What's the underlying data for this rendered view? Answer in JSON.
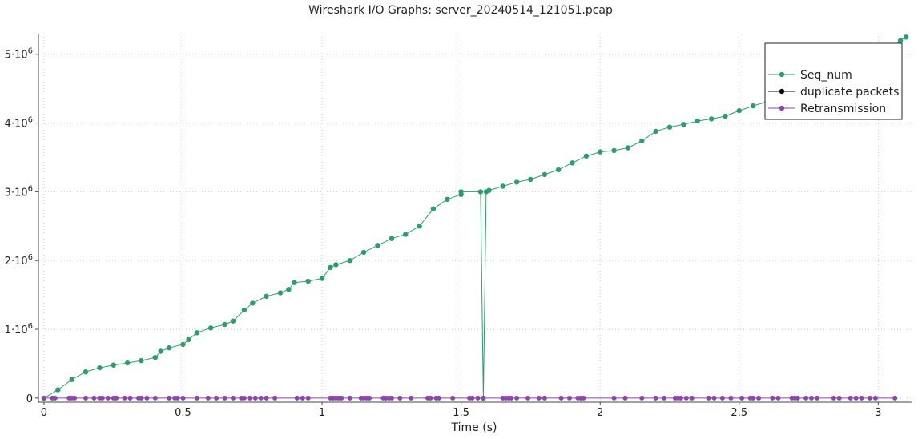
{
  "chart_data": {
    "type": "line",
    "title": "Wireshark I/O Graphs: server_20240514_121051.pcap",
    "xlabel": "Time (s)",
    "ylabel": "",
    "xlim": [
      -0.02,
      3.12
    ],
    "ylim": [
      -60000,
      5300000
    ],
    "x_ticks": [
      {
        "value": 0,
        "label": "0"
      },
      {
        "value": 0.5,
        "label": "0.5"
      },
      {
        "value": 1,
        "label": "1"
      },
      {
        "value": 1.5,
        "label": "1.5"
      },
      {
        "value": 2,
        "label": "2"
      },
      {
        "value": 2.5,
        "label": "2.5"
      },
      {
        "value": 3,
        "label": "3"
      }
    ],
    "y_ticks": [
      {
        "value": 0,
        "mantissa": "0",
        "exp": ""
      },
      {
        "value": 1000000,
        "mantissa": "1·10",
        "exp": "6"
      },
      {
        "value": 2000000,
        "mantissa": "2·10",
        "exp": "6"
      },
      {
        "value": 3000000,
        "mantissa": "3·10",
        "exp": "6"
      },
      {
        "value": 4000000,
        "mantissa": "4·10",
        "exp": "6"
      },
      {
        "value": 5000000,
        "mantissa": "5·10",
        "exp": "6"
      }
    ],
    "grid": true,
    "legend_position": "top-right",
    "series": [
      {
        "name": "Seq_num",
        "color": "#2e9e68",
        "x": [
          0.0,
          0.05,
          0.1,
          0.15,
          0.2,
          0.25,
          0.3,
          0.35,
          0.4,
          0.42,
          0.45,
          0.5,
          0.52,
          0.55,
          0.6,
          0.65,
          0.68,
          0.72,
          0.75,
          0.8,
          0.85,
          0.88,
          0.9,
          0.95,
          1.0,
          1.03,
          1.05,
          1.1,
          1.15,
          1.2,
          1.25,
          1.3,
          1.35,
          1.4,
          1.45,
          1.5,
          1.5,
          1.57,
          1.58,
          1.59,
          1.6,
          1.65,
          1.7,
          1.75,
          1.8,
          1.85,
          1.9,
          1.95,
          2.0,
          2.05,
          2.1,
          2.15,
          2.2,
          2.25,
          2.3,
          2.35,
          2.4,
          2.45,
          2.5,
          2.55,
          2.6,
          2.65,
          2.7,
          2.75,
          2.8,
          2.85,
          2.9,
          2.95,
          3.0,
          3.05,
          3.08,
          3.1
        ],
        "y": [
          0,
          120000,
          270000,
          380000,
          440000,
          480000,
          510000,
          545000,
          590000,
          680000,
          730000,
          780000,
          850000,
          950000,
          1020000,
          1070000,
          1120000,
          1280000,
          1380000,
          1480000,
          1530000,
          1580000,
          1680000,
          1700000,
          1740000,
          1900000,
          1940000,
          2000000,
          2120000,
          2220000,
          2320000,
          2380000,
          2500000,
          2750000,
          2890000,
          2960000,
          3000000,
          3000000,
          0,
          3000000,
          3020000,
          3080000,
          3140000,
          3180000,
          3250000,
          3320000,
          3420000,
          3520000,
          3580000,
          3600000,
          3640000,
          3740000,
          3880000,
          3940000,
          3980000,
          4030000,
          4060000,
          4100000,
          4180000,
          4250000,
          4310000,
          4380000,
          4470000,
          4560000,
          4640000,
          4720000,
          4800000,
          4880000,
          4980000,
          5100000,
          5200000,
          5250000
        ]
      },
      {
        "name": "duplicate packets",
        "color": "#000000",
        "x": [],
        "y": []
      },
      {
        "name": "Retransmission",
        "color": "#8e44ad",
        "x": [
          0.0,
          0.03,
          0.04,
          0.09,
          0.1,
          0.11,
          0.15,
          0.18,
          0.2,
          0.21,
          0.23,
          0.25,
          0.26,
          0.29,
          0.31,
          0.34,
          0.35,
          0.37,
          0.4,
          0.45,
          0.47,
          0.48,
          0.5,
          0.55,
          0.59,
          0.62,
          0.65,
          0.68,
          0.71,
          0.72,
          0.74,
          0.76,
          0.78,
          0.8,
          0.83,
          0.91,
          0.93,
          0.95,
          1.03,
          1.04,
          1.05,
          1.06,
          1.07,
          1.1,
          1.14,
          1.15,
          1.16,
          1.17,
          1.22,
          1.23,
          1.24,
          1.25,
          1.28,
          1.32,
          1.38,
          1.39,
          1.41,
          1.42,
          1.47,
          1.53,
          1.54,
          1.56,
          1.58,
          1.65,
          1.66,
          1.67,
          1.68,
          1.7,
          1.74,
          1.78,
          1.8,
          1.86,
          1.89,
          1.92,
          1.93,
          1.94,
          2.05,
          2.09,
          2.15,
          2.2,
          2.23,
          2.27,
          2.28,
          2.29,
          2.31,
          2.33,
          2.39,
          2.41,
          2.44,
          2.47,
          2.51,
          2.54,
          2.55,
          2.57,
          2.62,
          2.64,
          2.69,
          2.7,
          2.71,
          2.74,
          2.76,
          2.78,
          2.84,
          2.86,
          2.9,
          2.92,
          2.94,
          2.97,
          2.99,
          3.06
        ],
        "y": [
          0,
          0,
          0,
          0,
          0,
          0,
          0,
          0,
          0,
          0,
          0,
          0,
          0,
          0,
          0,
          0,
          0,
          0,
          0,
          0,
          0,
          0,
          0,
          0,
          0,
          0,
          0,
          0,
          0,
          0,
          0,
          0,
          0,
          0,
          0,
          0,
          0,
          0,
          0,
          0,
          0,
          0,
          0,
          0,
          0,
          0,
          0,
          0,
          0,
          0,
          0,
          0,
          0,
          0,
          0,
          0,
          0,
          0,
          0,
          0,
          0,
          0,
          0,
          0,
          0,
          0,
          0,
          0,
          0,
          0,
          0,
          0,
          0,
          0,
          0,
          0,
          0,
          0,
          0,
          0,
          0,
          0,
          0,
          0,
          0,
          0,
          0,
          0,
          0,
          0,
          0,
          0,
          0,
          0,
          0,
          0,
          0,
          0,
          0,
          0,
          0,
          0,
          0,
          0,
          0,
          0,
          0,
          0,
          0,
          0
        ]
      }
    ]
  }
}
